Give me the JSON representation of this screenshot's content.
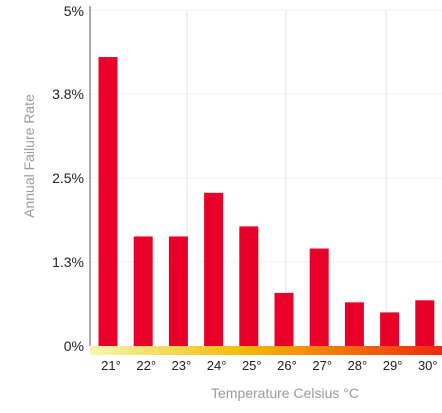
{
  "chart_data": {
    "type": "bar",
    "title": "",
    "xlabel": "Temperature Celsius °C",
    "ylabel": "Annual Failure Rate",
    "categories": [
      "21°",
      "22°",
      "23°",
      "24°",
      "25°",
      "26°",
      "27°",
      "28°",
      "29°",
      "30°"
    ],
    "series": [
      {
        "values": [
          4.3,
          1.63,
          1.63,
          2.28,
          1.78,
          0.79,
          1.45,
          0.65,
          0.5,
          0.68
        ]
      }
    ],
    "y_ticks": [
      "5%",
      "3.8%",
      "2.5%",
      "1.3%",
      "0%"
    ],
    "y_tick_values": [
      5,
      3.75,
      2.5,
      1.25,
      0
    ],
    "ylim": [
      0,
      5
    ],
    "grid": "vertical",
    "colors": {
      "bar": "#e8002a",
      "gradient_start": "#f3f7b0",
      "gradient_mid": "#f5b800",
      "gradient_end": "#ef2a10",
      "gridline": "#e2e2e2",
      "axis": "#555555"
    }
  }
}
